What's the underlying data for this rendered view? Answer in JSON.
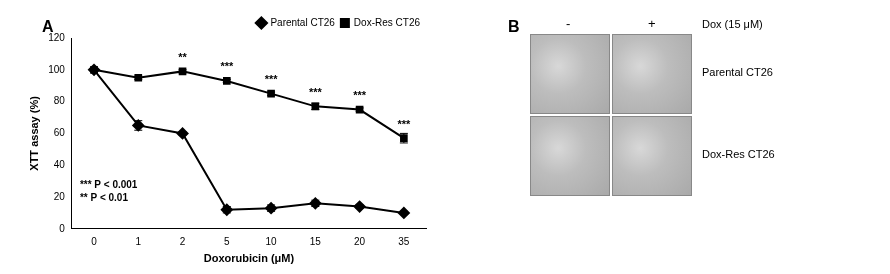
{
  "chart_data": {
    "type": "line",
    "panel_label": "A",
    "x_label": "Doxorubicin (μM)",
    "y_label": "XTT assay (%)",
    "categories": [
      "0",
      "1",
      "2",
      "5",
      "10",
      "15",
      "20",
      "35"
    ],
    "series": [
      {
        "name": "Parental CT26",
        "color": "#000000",
        "marker": "diamond",
        "values": [
          100,
          65,
          60,
          12,
          13,
          16,
          14,
          10
        ],
        "errors": [
          0,
          3,
          1,
          2,
          2,
          2,
          1,
          1
        ]
      },
      {
        "name": "Dox-Res CT26",
        "color": "#000000",
        "marker": "square",
        "values": [
          100,
          95,
          99,
          93,
          85,
          77,
          75,
          57
        ],
        "errors": [
          0,
          1,
          1,
          1,
          1,
          2,
          1,
          3
        ],
        "significance": [
          null,
          null,
          "**",
          "***",
          "***",
          "***",
          "***",
          "***"
        ]
      }
    ],
    "ylim": [
      0,
      120
    ],
    "yticks": [
      0,
      20,
      40,
      60,
      80,
      100,
      120
    ],
    "grid": false,
    "legend": "top-right",
    "annotations": [
      "*** P < 0.001",
      "** P < 0.01"
    ]
  },
  "panel_b": {
    "label": "B",
    "columns": [
      "-",
      "+"
    ],
    "treatment": "Dox (15 μM)",
    "rows": [
      "Parental CT26",
      "Dox-Res CT26"
    ]
  }
}
